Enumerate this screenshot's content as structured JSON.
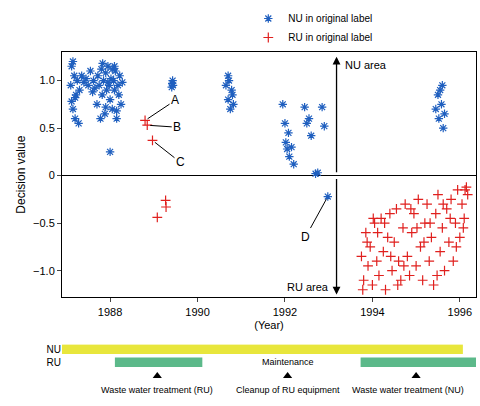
{
  "chart_data": {
    "type": "scatter",
    "x_label": "(Year)",
    "y_label": "Decision value",
    "xlim": [
      1986.9,
      1996.37
    ],
    "xticks": [
      1988,
      1990,
      1992,
      1994,
      1996
    ],
    "ylim": [
      -1.28,
      1.3
    ],
    "yticks": [
      {
        "value": -1,
        "label": "−1.0"
      },
      {
        "value": -0.5,
        "label": "−0.5"
      },
      0,
      0.5,
      {
        "value": 1,
        "label": "1.0"
      }
    ],
    "grid": false,
    "legend": "top",
    "series": [
      {
        "name": "NU in original label",
        "color": "#1f5fbf",
        "marker": "asterisk",
        "x": [
          1987.1,
          1987.12,
          1987.15,
          1987.18,
          1987.2,
          1987.22,
          1987.25,
          1987.3,
          1987.35,
          1987.4,
          1987.45,
          1987.5,
          1987.55,
          1987.6,
          1987.62,
          1987.65,
          1987.7,
          1987.72,
          1987.75,
          1987.8,
          1987.82,
          1987.85,
          1987.88,
          1987.9,
          1987.92,
          1987.95,
          1987.98,
          1988.0,
          1988.02,
          1988.05,
          1988.08,
          1988.1,
          1988.12,
          1988.15,
          1988.18,
          1988.2,
          1988.22,
          1988.25,
          1988.28,
          1987.15,
          1987.2,
          1987.28,
          1987.78,
          1987.83,
          1987.9,
          1988.05,
          1988.15,
          1987.12,
          1987.95,
          1988.1,
          1988.0,
          1989.42,
          1989.43,
          1989.41,
          1989.44,
          1990.65,
          1990.7,
          1990.72,
          1990.75,
          1990.78,
          1990.8,
          1990.82,
          1990.7,
          1991.95,
          1992.0,
          1992.02,
          1992.05,
          1992.08,
          1992.1,
          1992.15,
          1992.2,
          1992.45,
          1992.5,
          1992.55,
          1992.6,
          1992.7,
          1992.75,
          1992.85,
          1992.9,
          1992.98,
          1995.45,
          1995.5,
          1995.52,
          1995.55,
          1995.58,
          1995.6,
          1995.62,
          1995.65
        ],
        "values": [
          0.95,
          1.15,
          0.7,
          1.05,
          0.6,
          0.85,
          1.0,
          0.9,
          1.05,
          0.98,
          1.02,
          0.95,
          1.1,
          0.88,
          1.0,
          0.92,
          0.75,
          1.05,
          0.95,
          1.12,
          0.85,
          1.0,
          0.65,
          1.08,
          0.9,
          1.15,
          0.95,
          0.8,
          1.02,
          0.7,
          1.0,
          0.9,
          1.1,
          0.6,
          0.95,
          0.85,
          1.05,
          0.75,
          0.98,
          1.2,
          0.82,
          0.55,
          0.6,
          1.18,
          0.72,
          1.12,
          0.68,
          0.78,
          0.98,
          1.15,
          0.25,
          0.97,
          1.0,
          0.93,
          0.95,
          0.95,
          0.8,
          1.0,
          0.7,
          0.9,
          0.85,
          0.75,
          1.05,
          0.75,
          0.55,
          0.35,
          0.28,
          0.45,
          0.2,
          0.3,
          0.12,
          0.72,
          0.55,
          0.6,
          0.42,
          0.02,
          0.03,
          0.72,
          0.52,
          -0.22,
          0.7,
          0.85,
          0.6,
          0.9,
          0.75,
          0.95,
          0.5,
          0.65
        ]
      },
      {
        "name": "RU in original label",
        "color": "#e0201e",
        "marker": "cross",
        "x": [
          1988.8,
          1988.85,
          1988.97,
          1989.08,
          1989.27,
          1989.28,
          1993.75,
          1993.8,
          1993.85,
          1993.9,
          1993.95,
          1994.0,
          1994.05,
          1994.1,
          1994.15,
          1994.2,
          1994.25,
          1994.3,
          1994.35,
          1994.4,
          1994.45,
          1994.5,
          1994.55,
          1994.6,
          1994.65,
          1994.7,
          1994.75,
          1994.8,
          1994.85,
          1994.9,
          1994.95,
          1995.0,
          1995.05,
          1995.1,
          1995.15,
          1995.2,
          1995.25,
          1995.3,
          1995.35,
          1995.4,
          1995.45,
          1995.5,
          1995.55,
          1995.6,
          1995.65,
          1995.7,
          1995.75,
          1995.8,
          1995.85,
          1995.9,
          1995.95,
          1996.0,
          1996.05,
          1996.1,
          1996.15,
          1996.18,
          1993.78,
          1993.88,
          1994.02,
          1994.12,
          1994.28,
          1994.42,
          1994.58,
          1994.72,
          1994.88,
          1995.02,
          1995.18,
          1995.32,
          1995.48,
          1995.62,
          1995.78,
          1995.92,
          1996.08,
          1996.12
        ],
        "values": [
          0.58,
          0.53,
          0.37,
          -0.44,
          -0.26,
          -0.33,
          -0.85,
          -1.1,
          -0.6,
          -0.95,
          -0.75,
          -1.15,
          -0.5,
          -0.9,
          -1.05,
          -0.45,
          -0.8,
          -1.2,
          -0.65,
          -0.4,
          -1.0,
          -0.7,
          -0.35,
          -0.9,
          -1.1,
          -0.55,
          -0.3,
          -0.85,
          -1.05,
          -0.6,
          -0.4,
          -0.95,
          -0.25,
          -0.75,
          -1.1,
          -0.5,
          -0.3,
          -0.9,
          -0.65,
          -1.15,
          -0.4,
          -0.2,
          -0.8,
          -0.55,
          -1.0,
          -0.35,
          -0.7,
          -0.25,
          -0.9,
          -0.5,
          -0.15,
          -0.65,
          -0.3,
          -0.45,
          -0.12,
          -0.2,
          -1.2,
          -0.7,
          -0.45,
          -0.6,
          -0.5,
          -0.85,
          -1.15,
          -0.95,
          -0.35,
          -0.55,
          -0.7,
          -0.5,
          -1.05,
          -0.3,
          -0.45,
          -0.75,
          -0.55,
          -0.15
        ]
      }
    ],
    "annotations": [
      {
        "text": "A",
        "x": 1988.8,
        "y": 0.58
      },
      {
        "text": "B",
        "x": 1988.85,
        "y": 0.53
      },
      {
        "text": "C",
        "x": 1988.97,
        "y": 0.37
      },
      {
        "text": "D",
        "x": 1992.98,
        "y": -0.22
      }
    ],
    "regions": [
      {
        "label": "NU area",
        "x": 1993.18,
        "from": 0.02,
        "to": 1.25
      },
      {
        "label": "RU area",
        "x": 1993.18,
        "from": -0.02,
        "to": -1.25
      }
    ],
    "timeline": {
      "rows": [
        {
          "name": "NU",
          "color": "#e8e63c"
        },
        {
          "name": "RU",
          "color": "#5cb98a"
        }
      ],
      "periods": [
        {
          "row": "NU",
          "start": 1986.9,
          "end": 1996.07
        },
        {
          "row": "RU",
          "start": 1988.11,
          "end": 1990.11
        },
        {
          "row": "RU",
          "start": 1993.73,
          "end": 1996.37
        }
      ],
      "events": [
        {
          "x": 1989.08,
          "label": "Waste water treatment (RU)"
        },
        {
          "x": 1992.06,
          "label": "Cleanup of RU equipment"
        },
        {
          "x": 1995.0,
          "label": "Waste water treatment (NU)"
        }
      ],
      "notes": [
        {
          "text": "Maintenance",
          "x": 1992.06
        }
      ]
    }
  }
}
